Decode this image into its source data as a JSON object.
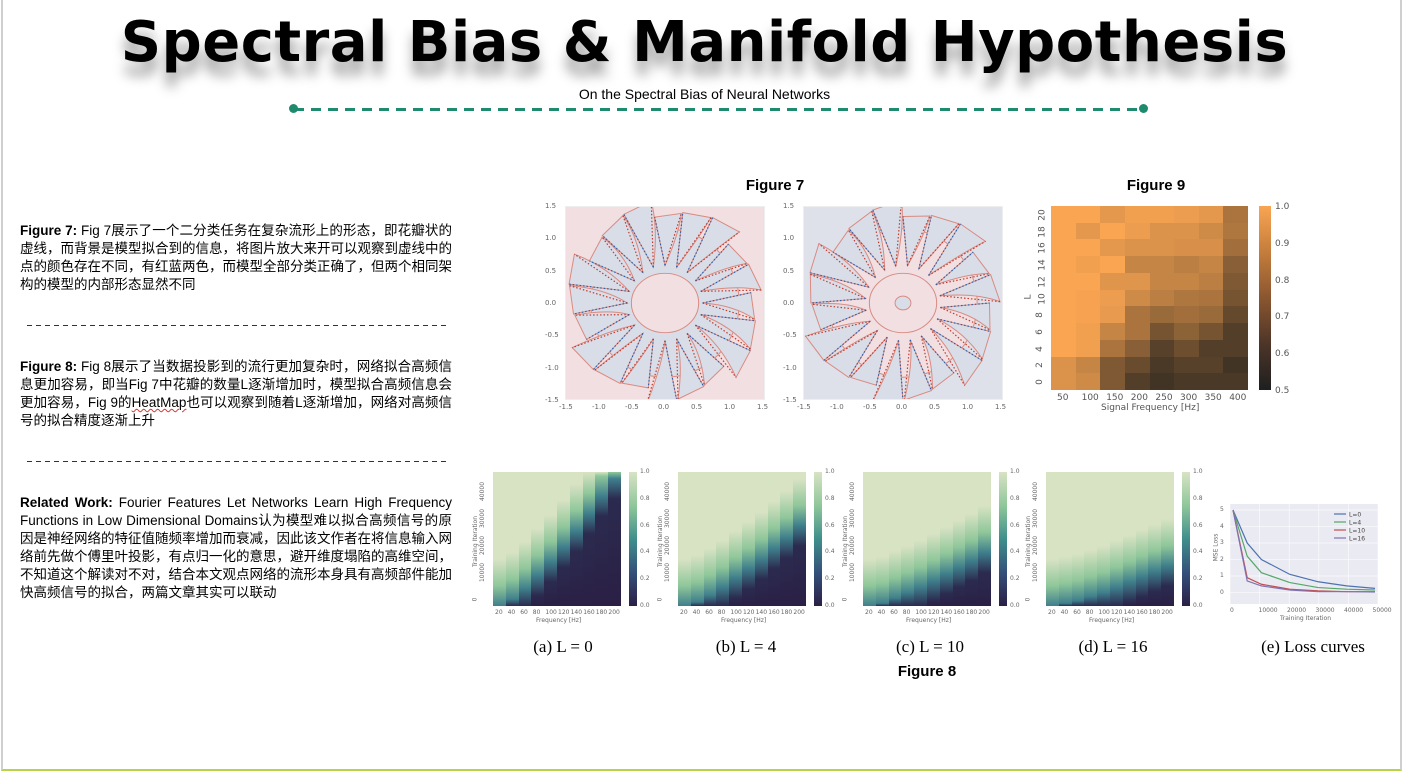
{
  "header": {
    "title": "Spectral Bias & Manifold Hypothesis",
    "subtitle": "On the Spectral Bias of Neural Networks",
    "accent_color": "#1e8a6e"
  },
  "notes": [
    {
      "label": "Figure 7:",
      "text": "Fig 7展示了一个二分类任务在复杂流形上的形态，即花瓣状的虚线，而背景是模型拟合到的信息，将图片放大来开可以观察到虚线中的点的颜色存在不同，有红蓝两色，而模型全部分类正确了，但两个相同架构的模型的内部形态显然不同"
    },
    {
      "label": "Figure 8:",
      "text_before": "Fig 8展示了当数据投影到的流行更加复杂时，网络拟合高频信息更加容易，即当Fig 7中花瓣的数量L逐渐增加时，模型拟合高频信息会更加容易，Fig 9的",
      "spellcheck_word": "HeatMap",
      "text_after": "也可以观察到随着L逐渐增加，网络对高频信号的拟合精度逐渐上升"
    },
    {
      "label": "Related Work:",
      "text": "Fourier Features Let Networks Learn High Frequency Functions in Low Dimensional Domains认为模型难以拟合高频信号的原因是神经网络的特征值随频率增加而衰减，因此该文作者在将信息输入网络前先做个傅里叶投影，有点归一化的意思，避开维度塌陷的高维空间，不知道这个解读对不对，结合本文观点网络的流形本身具有高频部件能加快高频信号的拟合，两篇文章其实可以联动"
    }
  ],
  "figures": {
    "fig7": {
      "title": "Figure 7",
      "ticks": [
        "-1.5",
        "-1.0",
        "-0.5",
        "0.0",
        "0.5",
        "1.0",
        "1.5"
      ],
      "yticks": [
        "1.5",
        "1.0",
        "0.5",
        "0.0",
        "-0.5",
        "-1.0",
        "-1.5"
      ]
    },
    "fig9": {
      "title": "Figure 9",
      "xlabel": "Signal Frequency [Hz]",
      "ylabel": "L",
      "xticks": [
        "50",
        "100",
        "150",
        "200",
        "250",
        "300",
        "350",
        "400"
      ],
      "yticks": [
        "20",
        "18",
        "16",
        "14",
        "12",
        "10",
        "8",
        "6",
        "4",
        "2",
        "0"
      ],
      "cbar_ticks": [
        "1.0",
        "0.9",
        "0.8",
        "0.7",
        "0.6",
        "0.5"
      ]
    },
    "fig8": {
      "title": "Figure 8",
      "xlabel": "Frequency [Hz]",
      "ylabel": "Training Iteration",
      "xticks": [
        "20",
        "40",
        "60",
        "80",
        "100",
        "120",
        "140",
        "160",
        "180",
        "200"
      ],
      "yticks": [
        "40000",
        "30000",
        "20000",
        "10000",
        "0"
      ],
      "cbar_ticks": [
        "1.0",
        "0.8",
        "0.6",
        "0.4",
        "0.2",
        "0.0"
      ],
      "captions": [
        "(a) L = 0",
        "(b) L = 4",
        "(c) L = 10",
        "(d) L = 16",
        "(e) Loss curves"
      ],
      "loss": {
        "xlabel": "Training Iteration",
        "ylabel": "MSE Loss",
        "xticks": [
          "0",
          "10000",
          "20000",
          "30000",
          "40000",
          "50000"
        ],
        "yticks": [
          "5",
          "4",
          "3",
          "2",
          "1",
          "0"
        ],
        "legend": [
          "L=0",
          "L=4",
          "L=10",
          "L=16"
        ],
        "colors": [
          "#4c72b0",
          "#55a868",
          "#c44e52",
          "#8172b2"
        ]
      }
    }
  },
  "chart_data": [
    {
      "type": "heatmap",
      "title": "Figure 9",
      "xlabel": "Signal Frequency [Hz]",
      "ylabel": "L",
      "x": [
        50,
        100,
        150,
        200,
        250,
        300,
        350,
        400
      ],
      "y": [
        20,
        18,
        16,
        14,
        12,
        10,
        8,
        6,
        4,
        2,
        0
      ],
      "values": [
        [
          1.0,
          1.0,
          0.95,
          0.98,
          0.98,
          0.97,
          0.95,
          0.82
        ],
        [
          1.0,
          0.95,
          1.0,
          0.97,
          0.93,
          0.93,
          0.9,
          0.83
        ],
        [
          1.0,
          1.0,
          0.95,
          0.93,
          0.93,
          0.92,
          0.92,
          0.8
        ],
        [
          1.0,
          0.98,
          1.0,
          0.88,
          0.88,
          0.86,
          0.88,
          0.74
        ],
        [
          1.0,
          1.0,
          0.94,
          0.94,
          0.88,
          0.88,
          0.86,
          0.72
        ],
        [
          1.0,
          0.99,
          0.97,
          0.9,
          0.86,
          0.83,
          0.82,
          0.7
        ],
        [
          1.0,
          0.99,
          0.96,
          0.82,
          0.78,
          0.8,
          0.78,
          0.66
        ],
        [
          1.0,
          0.98,
          0.88,
          0.82,
          0.7,
          0.75,
          0.7,
          0.62
        ],
        [
          1.0,
          0.98,
          0.82,
          0.74,
          0.63,
          0.68,
          0.62,
          0.62
        ],
        [
          0.93,
          0.88,
          0.72,
          0.67,
          0.6,
          0.63,
          0.63,
          0.58
        ],
        [
          0.93,
          0.9,
          0.72,
          0.62,
          0.58,
          0.6,
          0.6,
          0.6
        ]
      ],
      "colorbar_range": [
        0.5,
        1.0
      ]
    },
    {
      "type": "line",
      "title": "(e) Loss curves",
      "xlabel": "Training Iteration",
      "ylabel": "MSE Loss",
      "x": [
        0,
        5000,
        10000,
        20000,
        30000,
        40000,
        50000
      ],
      "series": [
        {
          "name": "L=0",
          "values": [
            5.0,
            3.0,
            2.0,
            1.1,
            0.65,
            0.4,
            0.25
          ]
        },
        {
          "name": "L=4",
          "values": [
            5.0,
            2.2,
            1.2,
            0.6,
            0.3,
            0.2,
            0.15
          ]
        },
        {
          "name": "L=10",
          "values": [
            5.0,
            0.9,
            0.5,
            0.2,
            0.1,
            0.05,
            0.05
          ]
        },
        {
          "name": "L=16",
          "values": [
            5.0,
            0.7,
            0.4,
            0.15,
            0.05,
            0.05,
            0.03
          ]
        }
      ],
      "xlim": [
        0,
        50000
      ],
      "ylim": [
        0,
        5
      ],
      "legend_position": "upper right",
      "grid": true
    }
  ]
}
